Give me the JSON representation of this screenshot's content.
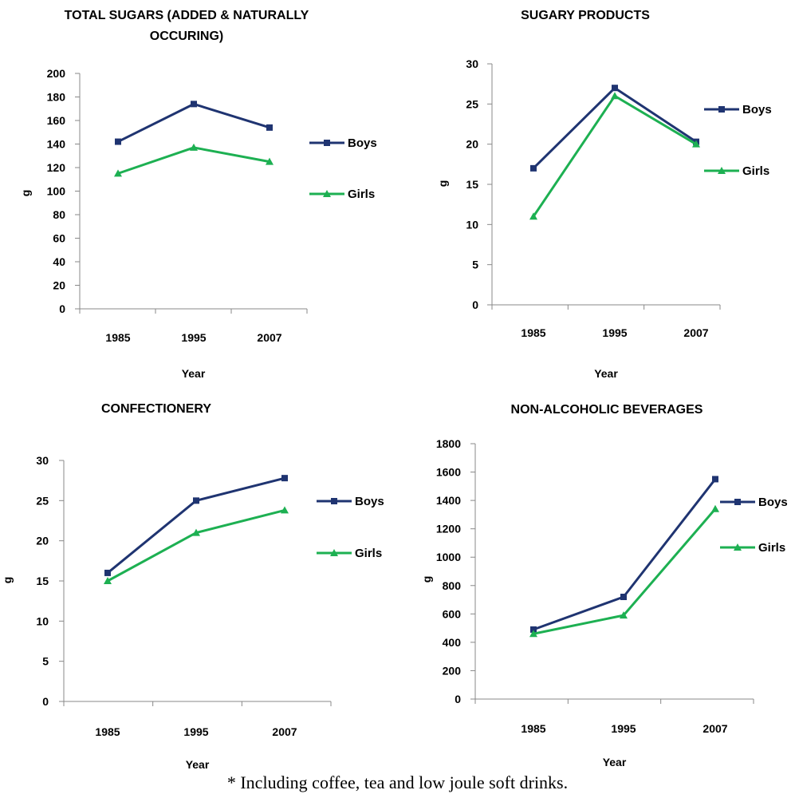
{
  "footnote": "* Including coffee, tea and low joule soft drinks.",
  "chart_data": [
    {
      "type": "line",
      "title": "TOTAL SUGARS (ADDED & NATURALLY OCCURING)",
      "title_lines": [
        "TOTAL SUGARS (ADDED & NATURALLY",
        "OCCURING)"
      ],
      "categories": [
        "1985",
        "1995",
        "2007"
      ],
      "xlabel": "Year",
      "ylabel": "g",
      "ylim": [
        0,
        200
      ],
      "yticks": [
        0,
        20,
        40,
        60,
        80,
        100,
        120,
        140,
        160,
        180,
        200
      ],
      "series": [
        {
          "name": "Boys",
          "color": "#1f3471",
          "marker": "square",
          "values": [
            142,
            174,
            154
          ]
        },
        {
          "name": "Girls",
          "color": "#1db052",
          "marker": "triangle",
          "values": [
            115,
            137,
            125
          ]
        }
      ],
      "legend": "right"
    },
    {
      "type": "line",
      "title": "SUGARY PRODUCTS",
      "title_lines": [
        "SUGARY PRODUCTS"
      ],
      "categories": [
        "1985",
        "1995",
        "2007"
      ],
      "xlabel": "Year",
      "ylabel": "g",
      "ylim": [
        0,
        30
      ],
      "yticks": [
        0,
        5,
        10,
        15,
        20,
        25,
        30
      ],
      "series": [
        {
          "name": "Boys",
          "color": "#1f3471",
          "marker": "square",
          "values": [
            17,
            27,
            20.3
          ]
        },
        {
          "name": "Girls",
          "color": "#1db052",
          "marker": "triangle",
          "values": [
            11,
            26,
            20
          ]
        }
      ],
      "legend": "right"
    },
    {
      "type": "line",
      "title": "CONFECTIONERY",
      "title_lines": [
        "CONFECTIONERY"
      ],
      "categories": [
        "1985",
        "1995",
        "2007"
      ],
      "xlabel": "Year",
      "ylabel": "g",
      "ylim": [
        0,
        30
      ],
      "yticks": [
        0,
        5,
        10,
        15,
        20,
        25,
        30
      ],
      "series": [
        {
          "name": "Boys",
          "color": "#1f3471",
          "marker": "square",
          "values": [
            16,
            25,
            27.8
          ]
        },
        {
          "name": "Girls",
          "color": "#1db052",
          "marker": "triangle",
          "values": [
            15,
            21,
            23.8
          ]
        }
      ],
      "legend": "right"
    },
    {
      "type": "line",
      "title": "NON-ALCOHOLIC BEVERAGES",
      "title_lines": [
        "NON-ALCOHOLIC BEVERAGES"
      ],
      "categories": [
        "1985",
        "1995",
        "2007"
      ],
      "xlabel": "Year",
      "ylabel": "g",
      "ylim": [
        0,
        1800
      ],
      "yticks": [
        0,
        200,
        400,
        600,
        800,
        1000,
        1200,
        1400,
        1600,
        1800
      ],
      "series": [
        {
          "name": "Boys",
          "color": "#1f3471",
          "marker": "square",
          "values": [
            490,
            720,
            1550
          ]
        },
        {
          "name": "Girls",
          "color": "#1db052",
          "marker": "triangle",
          "values": [
            460,
            590,
            1340
          ]
        }
      ],
      "legend": "right"
    }
  ]
}
